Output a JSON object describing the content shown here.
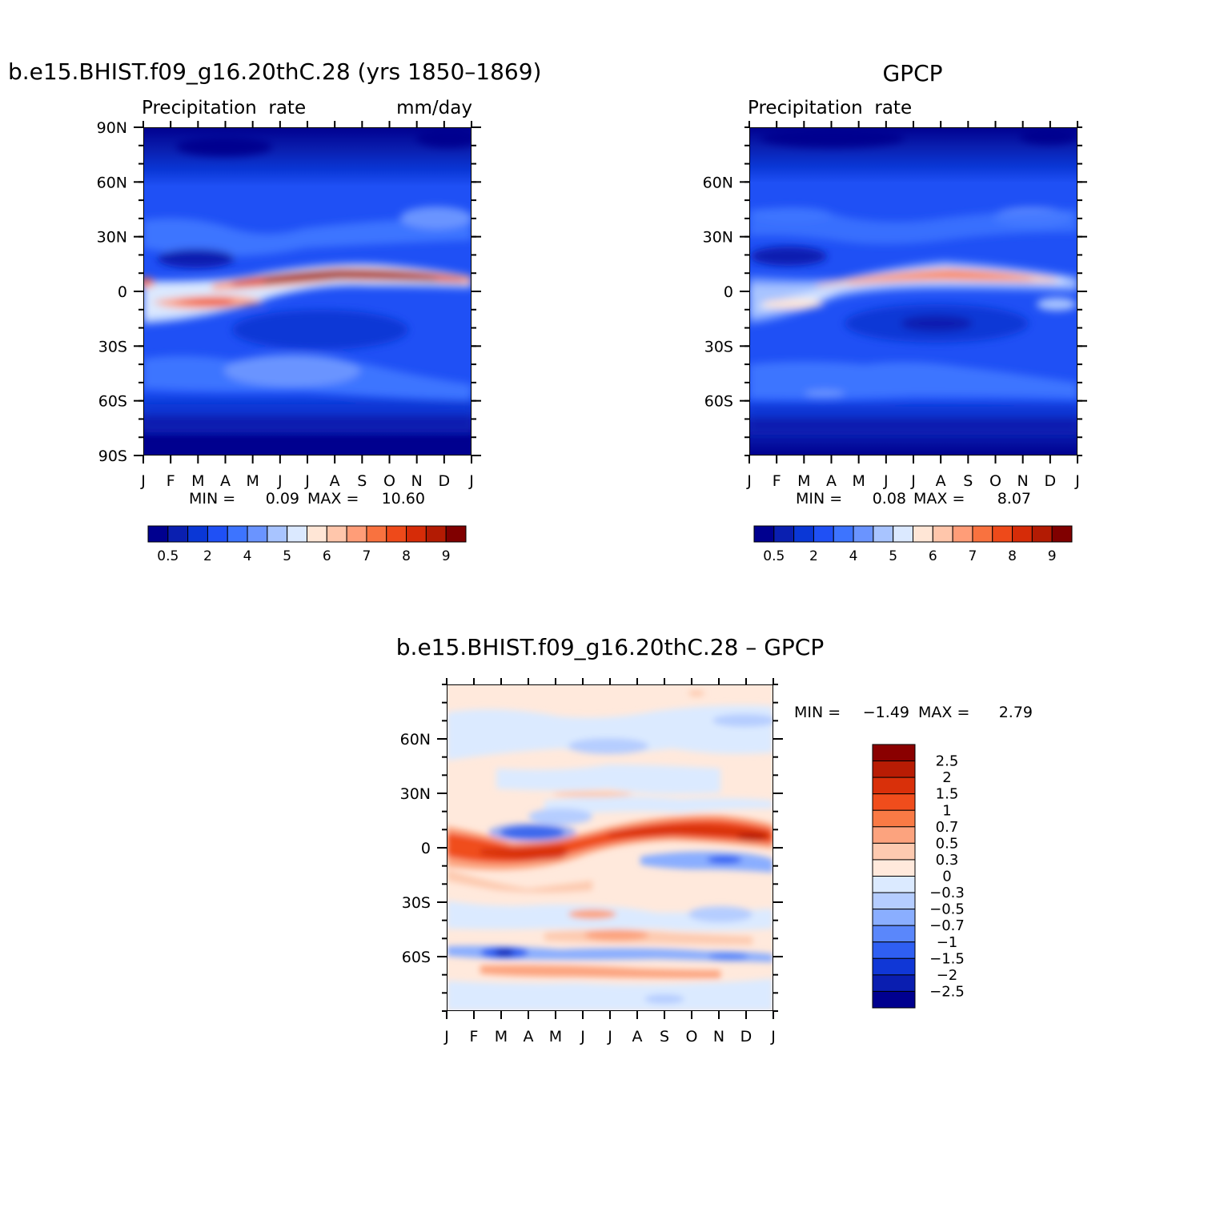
{
  "figure": {
    "chart_data": [
      {
        "type": "heatmap",
        "title": "b.e15.BHIST.f09_g16.20thC.28 (yrs 1850–1869)",
        "left_label": "Precipitation  rate",
        "right_label": "mm/day",
        "x_ticks": [
          "J",
          "F",
          "M",
          "A",
          "M",
          "J",
          "J",
          "A",
          "S",
          "O",
          "N",
          "D",
          "J"
        ],
        "y_ticks": [
          "90N",
          "60N",
          "30N",
          "0",
          "30S",
          "60S",
          "90S"
        ],
        "y_tick_values": [
          90,
          60,
          30,
          0,
          -30,
          -60,
          -90
        ],
        "ylim": [
          -90,
          90
        ],
        "stats": {
          "min_label": "MIN =",
          "min": "0.09",
          "max_label": "MAX =",
          "max": "10.60"
        },
        "colorbar": {
          "orientation": "horizontal",
          "labels": [
            "0.5",
            "2",
            "4",
            "5",
            "6",
            "7",
            "8",
            "9"
          ],
          "colors": [
            "#00008f",
            "#0a1fb0",
            "#0a37d6",
            "#1f50f5",
            "#3d74ff",
            "#6a94ff",
            "#a8c4ff",
            "#dbe9ff",
            "#ffe6d6",
            "#ffc6ab",
            "#ff9d78",
            "#f9723f",
            "#ee4a1a",
            "#d62c08",
            "#b31b03",
            "#800000"
          ]
        }
      },
      {
        "type": "heatmap",
        "title": "GPCP",
        "left_label": "Precipitation  rate",
        "right_label": "",
        "x_ticks": [
          "J",
          "F",
          "M",
          "A",
          "M",
          "J",
          "J",
          "A",
          "S",
          "O",
          "N",
          "D",
          "J"
        ],
        "y_ticks": [
          "60N",
          "30N",
          "0",
          "30S",
          "60S"
        ],
        "y_tick_values": [
          60,
          30,
          0,
          -30,
          -60
        ],
        "ylim": [
          -90,
          90
        ],
        "stats": {
          "min_label": "MIN =",
          "min": "0.08",
          "max_label": "MAX =",
          "max": "8.07"
        },
        "colorbar": {
          "orientation": "horizontal",
          "labels": [
            "0.5",
            "2",
            "4",
            "5",
            "6",
            "7",
            "8",
            "9"
          ],
          "colors": [
            "#00008f",
            "#0a1fb0",
            "#0a37d6",
            "#1f50f5",
            "#3d74ff",
            "#6a94ff",
            "#a8c4ff",
            "#dbe9ff",
            "#ffe6d6",
            "#ffc6ab",
            "#ff9d78",
            "#f9723f",
            "#ee4a1a",
            "#d62c08",
            "#b31b03",
            "#800000"
          ]
        }
      },
      {
        "type": "heatmap",
        "title": "b.e15.BHIST.f09_g16.20thC.28 – GPCP",
        "x_ticks": [
          "J",
          "F",
          "M",
          "A",
          "M",
          "J",
          "J",
          "A",
          "S",
          "O",
          "N",
          "D",
          "J"
        ],
        "y_ticks": [
          "60N",
          "30N",
          "0",
          "30S",
          "60S"
        ],
        "y_tick_values": [
          60,
          30,
          0,
          -30,
          -60
        ],
        "ylim": [
          -90,
          90
        ],
        "stats": {
          "min_label": "MIN =",
          "min": "−1.49",
          "max_label": "MAX =",
          "max": "2.79"
        },
        "colorbar": {
          "orientation": "vertical",
          "labels": [
            "2.5",
            "2",
            "1.5",
            "1",
            "0.7",
            "0.5",
            "0.3",
            "0",
            "−0.3",
            "−0.5",
            "−0.7",
            "−1",
            "−1.5",
            "−2",
            "−2.5"
          ],
          "colors": [
            "#8a0000",
            "#b81c04",
            "#d9300a",
            "#f04d1c",
            "#f97a45",
            "#fca37e",
            "#fdcab0",
            "#ffe9dc",
            "#dbeaff",
            "#b5cdff",
            "#8aaeff",
            "#5a87fb",
            "#2f5ff2",
            "#1037d6",
            "#0a1eb0",
            "#00008f"
          ]
        }
      }
    ]
  }
}
